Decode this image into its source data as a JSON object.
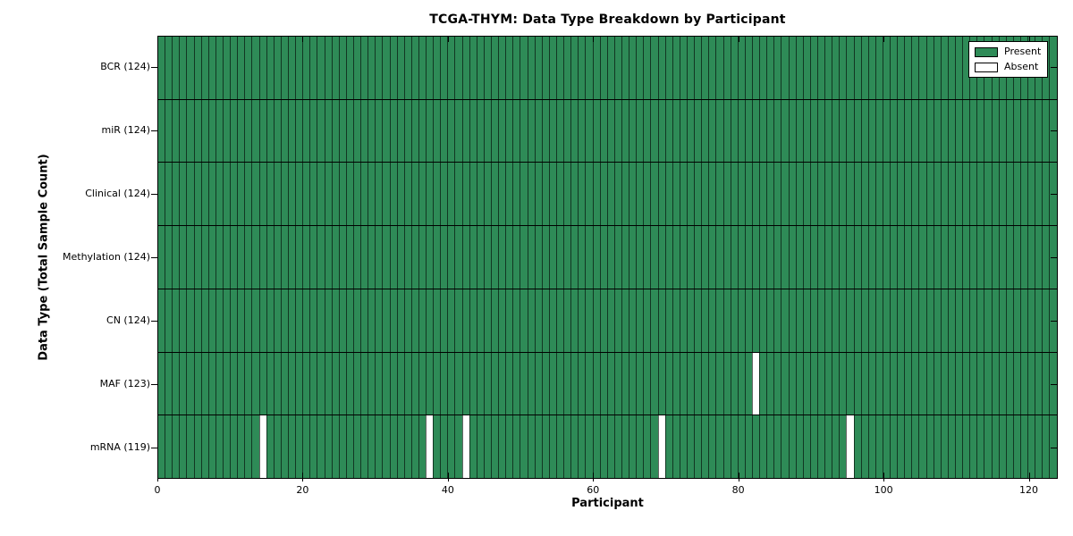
{
  "figure": {
    "title": "TCGA-THYM: Data Type Breakdown by Participant",
    "xlabel": "Participant",
    "ylabel": "Data Type (Total Sample Count)"
  },
  "legend": {
    "items": [
      {
        "label": "Present",
        "color": "#2e8b57"
      },
      {
        "label": "Absent",
        "color": "#ffffff"
      }
    ]
  },
  "chart_data": {
    "type": "heatmap",
    "title": "TCGA-THYM: Data Type Breakdown by Participant",
    "xlabel": "Participant",
    "ylabel": "Data Type (Total Sample Count)",
    "x_ticks": [
      0,
      20,
      40,
      60,
      80,
      100,
      120
    ],
    "xlim": [
      0,
      124
    ],
    "n_participants": 124,
    "colors": {
      "present": "#2e8b57",
      "absent": "#ffffff",
      "edge": "#000000"
    },
    "legend_entries": [
      "Present",
      "Absent"
    ],
    "legend_position": "upper right",
    "rows": [
      {
        "label": "BCR (124)",
        "data_type": "BCR",
        "present_count": 124,
        "absent_participants": []
      },
      {
        "label": "miR (124)",
        "data_type": "miR",
        "present_count": 124,
        "absent_participants": []
      },
      {
        "label": "Clinical (124)",
        "data_type": "Clinical",
        "present_count": 124,
        "absent_participants": []
      },
      {
        "label": "Methylation (124)",
        "data_type": "Methylation",
        "present_count": 124,
        "absent_participants": []
      },
      {
        "label": "CN (124)",
        "data_type": "CN",
        "present_count": 124,
        "absent_participants": []
      },
      {
        "label": "MAF (123)",
        "data_type": "MAF",
        "present_count": 123,
        "absent_participants": [
          82
        ]
      },
      {
        "label": "mRNA (119)",
        "data_type": "mRNA",
        "present_count": 119,
        "absent_participants": [
          14,
          37,
          42,
          69,
          95
        ]
      }
    ]
  }
}
